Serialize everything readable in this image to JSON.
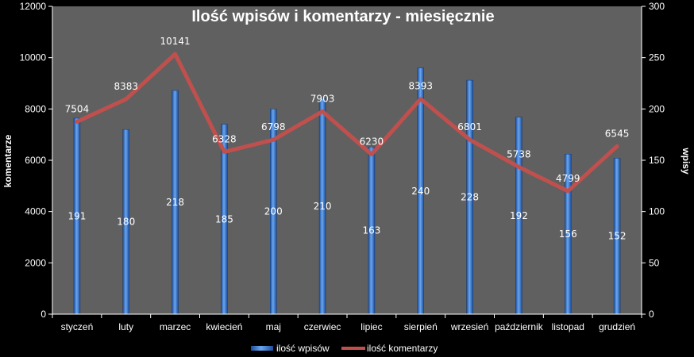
{
  "chart_data": {
    "type": "bar",
    "title": "Ilość wpisów i komentarzy - miesięcznie",
    "categories": [
      "styczeń",
      "luty",
      "marzec",
      "kwiecień",
      "maj",
      "czerwiec",
      "lipiec",
      "sierpień",
      "wrzesień",
      "październik",
      "listopad",
      "grudzień"
    ],
    "y_left": {
      "label": "komentarze",
      "min": 0,
      "max": 12000,
      "step": 2000
    },
    "y_right": {
      "label": "wpisy",
      "min": 0,
      "max": 300,
      "step": 50
    },
    "series": [
      {
        "name": "ilość wpisów",
        "type": "bar",
        "axis": "right",
        "color": "#3a7bd5",
        "values": [
          191,
          180,
          218,
          185,
          200,
          210,
          163,
          240,
          228,
          192,
          156,
          152
        ]
      },
      {
        "name": "ilość komentarzy",
        "type": "line",
        "axis": "left",
        "color": "#c0504d",
        "values": [
          7504,
          8383,
          10141,
          6328,
          6798,
          7903,
          6230,
          8393,
          6801,
          5738,
          4799,
          6545
        ]
      }
    ],
    "plot_background": "#606060",
    "grid": false,
    "legend_position": "bottom"
  }
}
